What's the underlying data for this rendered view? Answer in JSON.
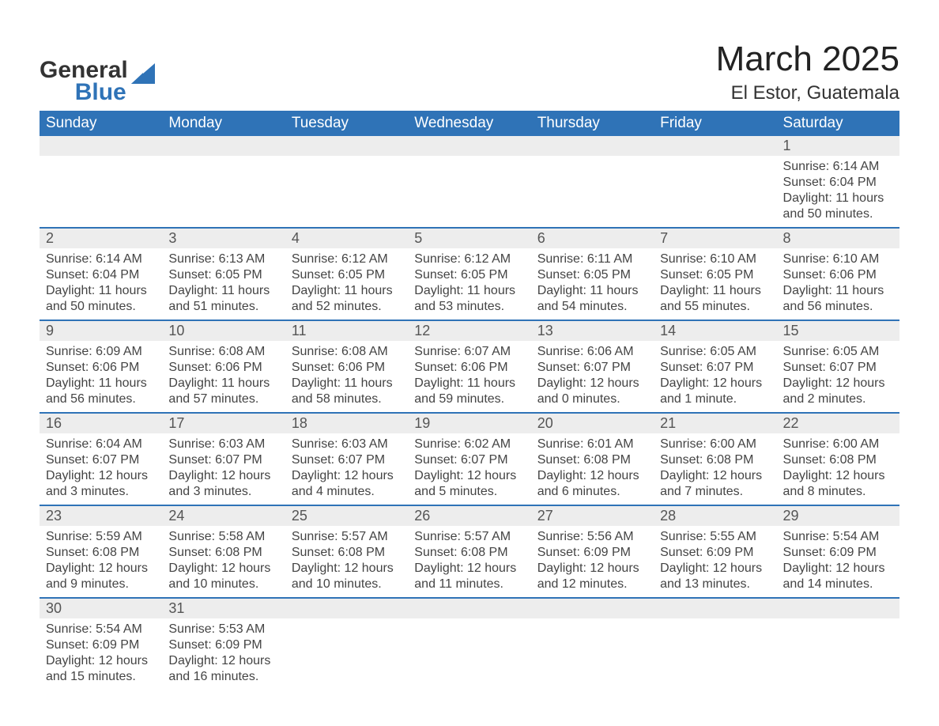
{
  "logo": {
    "text_top": "General",
    "text_bottom": "Blue",
    "shape_color": "#2f73b7",
    "text_color_top": "#333333"
  },
  "header": {
    "title": "March 2025",
    "location": "El Estor, Guatemala"
  },
  "calendar": {
    "type": "table",
    "header_bg_color": "#2f73b7",
    "header_text_color": "#ffffff",
    "daynum_bg_color": "#ededed",
    "daynum_text_color": "#555555",
    "row_divider_color": "#2f73b7",
    "body_text_color": "#444444",
    "background_color": "#ffffff",
    "days_of_week": [
      "Sunday",
      "Monday",
      "Tuesday",
      "Wednesday",
      "Thursday",
      "Friday",
      "Saturday"
    ],
    "weeks": [
      {
        "nums": [
          "",
          "",
          "",
          "",
          "",
          "",
          "1"
        ],
        "cells": [
          null,
          null,
          null,
          null,
          null,
          null,
          {
            "sunrise": "Sunrise: 6:14 AM",
            "sunset": "Sunset: 6:04 PM",
            "day1": "Daylight: 11 hours",
            "day2": "and 50 minutes."
          }
        ]
      },
      {
        "nums": [
          "2",
          "3",
          "4",
          "5",
          "6",
          "7",
          "8"
        ],
        "cells": [
          {
            "sunrise": "Sunrise: 6:14 AM",
            "sunset": "Sunset: 6:04 PM",
            "day1": "Daylight: 11 hours",
            "day2": "and 50 minutes."
          },
          {
            "sunrise": "Sunrise: 6:13 AM",
            "sunset": "Sunset: 6:05 PM",
            "day1": "Daylight: 11 hours",
            "day2": "and 51 minutes."
          },
          {
            "sunrise": "Sunrise: 6:12 AM",
            "sunset": "Sunset: 6:05 PM",
            "day1": "Daylight: 11 hours",
            "day2": "and 52 minutes."
          },
          {
            "sunrise": "Sunrise: 6:12 AM",
            "sunset": "Sunset: 6:05 PM",
            "day1": "Daylight: 11 hours",
            "day2": "and 53 minutes."
          },
          {
            "sunrise": "Sunrise: 6:11 AM",
            "sunset": "Sunset: 6:05 PM",
            "day1": "Daylight: 11 hours",
            "day2": "and 54 minutes."
          },
          {
            "sunrise": "Sunrise: 6:10 AM",
            "sunset": "Sunset: 6:05 PM",
            "day1": "Daylight: 11 hours",
            "day2": "and 55 minutes."
          },
          {
            "sunrise": "Sunrise: 6:10 AM",
            "sunset": "Sunset: 6:06 PM",
            "day1": "Daylight: 11 hours",
            "day2": "and 56 minutes."
          }
        ]
      },
      {
        "nums": [
          "9",
          "10",
          "11",
          "12",
          "13",
          "14",
          "15"
        ],
        "cells": [
          {
            "sunrise": "Sunrise: 6:09 AM",
            "sunset": "Sunset: 6:06 PM",
            "day1": "Daylight: 11 hours",
            "day2": "and 56 minutes."
          },
          {
            "sunrise": "Sunrise: 6:08 AM",
            "sunset": "Sunset: 6:06 PM",
            "day1": "Daylight: 11 hours",
            "day2": "and 57 minutes."
          },
          {
            "sunrise": "Sunrise: 6:08 AM",
            "sunset": "Sunset: 6:06 PM",
            "day1": "Daylight: 11 hours",
            "day2": "and 58 minutes."
          },
          {
            "sunrise": "Sunrise: 6:07 AM",
            "sunset": "Sunset: 6:06 PM",
            "day1": "Daylight: 11 hours",
            "day2": "and 59 minutes."
          },
          {
            "sunrise": "Sunrise: 6:06 AM",
            "sunset": "Sunset: 6:07 PM",
            "day1": "Daylight: 12 hours",
            "day2": "and 0 minutes."
          },
          {
            "sunrise": "Sunrise: 6:05 AM",
            "sunset": "Sunset: 6:07 PM",
            "day1": "Daylight: 12 hours",
            "day2": "and 1 minute."
          },
          {
            "sunrise": "Sunrise: 6:05 AM",
            "sunset": "Sunset: 6:07 PM",
            "day1": "Daylight: 12 hours",
            "day2": "and 2 minutes."
          }
        ]
      },
      {
        "nums": [
          "16",
          "17",
          "18",
          "19",
          "20",
          "21",
          "22"
        ],
        "cells": [
          {
            "sunrise": "Sunrise: 6:04 AM",
            "sunset": "Sunset: 6:07 PM",
            "day1": "Daylight: 12 hours",
            "day2": "and 3 minutes."
          },
          {
            "sunrise": "Sunrise: 6:03 AM",
            "sunset": "Sunset: 6:07 PM",
            "day1": "Daylight: 12 hours",
            "day2": "and 3 minutes."
          },
          {
            "sunrise": "Sunrise: 6:03 AM",
            "sunset": "Sunset: 6:07 PM",
            "day1": "Daylight: 12 hours",
            "day2": "and 4 minutes."
          },
          {
            "sunrise": "Sunrise: 6:02 AM",
            "sunset": "Sunset: 6:07 PM",
            "day1": "Daylight: 12 hours",
            "day2": "and 5 minutes."
          },
          {
            "sunrise": "Sunrise: 6:01 AM",
            "sunset": "Sunset: 6:08 PM",
            "day1": "Daylight: 12 hours",
            "day2": "and 6 minutes."
          },
          {
            "sunrise": "Sunrise: 6:00 AM",
            "sunset": "Sunset: 6:08 PM",
            "day1": "Daylight: 12 hours",
            "day2": "and 7 minutes."
          },
          {
            "sunrise": "Sunrise: 6:00 AM",
            "sunset": "Sunset: 6:08 PM",
            "day1": "Daylight: 12 hours",
            "day2": "and 8 minutes."
          }
        ]
      },
      {
        "nums": [
          "23",
          "24",
          "25",
          "26",
          "27",
          "28",
          "29"
        ],
        "cells": [
          {
            "sunrise": "Sunrise: 5:59 AM",
            "sunset": "Sunset: 6:08 PM",
            "day1": "Daylight: 12 hours",
            "day2": "and 9 minutes."
          },
          {
            "sunrise": "Sunrise: 5:58 AM",
            "sunset": "Sunset: 6:08 PM",
            "day1": "Daylight: 12 hours",
            "day2": "and 10 minutes."
          },
          {
            "sunrise": "Sunrise: 5:57 AM",
            "sunset": "Sunset: 6:08 PM",
            "day1": "Daylight: 12 hours",
            "day2": "and 10 minutes."
          },
          {
            "sunrise": "Sunrise: 5:57 AM",
            "sunset": "Sunset: 6:08 PM",
            "day1": "Daylight: 12 hours",
            "day2": "and 11 minutes."
          },
          {
            "sunrise": "Sunrise: 5:56 AM",
            "sunset": "Sunset: 6:09 PM",
            "day1": "Daylight: 12 hours",
            "day2": "and 12 minutes."
          },
          {
            "sunrise": "Sunrise: 5:55 AM",
            "sunset": "Sunset: 6:09 PM",
            "day1": "Daylight: 12 hours",
            "day2": "and 13 minutes."
          },
          {
            "sunrise": "Sunrise: 5:54 AM",
            "sunset": "Sunset: 6:09 PM",
            "day1": "Daylight: 12 hours",
            "day2": "and 14 minutes."
          }
        ]
      },
      {
        "nums": [
          "30",
          "31",
          "",
          "",
          "",
          "",
          ""
        ],
        "cells": [
          {
            "sunrise": "Sunrise: 5:54 AM",
            "sunset": "Sunset: 6:09 PM",
            "day1": "Daylight: 12 hours",
            "day2": "and 15 minutes."
          },
          {
            "sunrise": "Sunrise: 5:53 AM",
            "sunset": "Sunset: 6:09 PM",
            "day1": "Daylight: 12 hours",
            "day2": "and 16 minutes."
          },
          null,
          null,
          null,
          null,
          null
        ]
      }
    ]
  }
}
